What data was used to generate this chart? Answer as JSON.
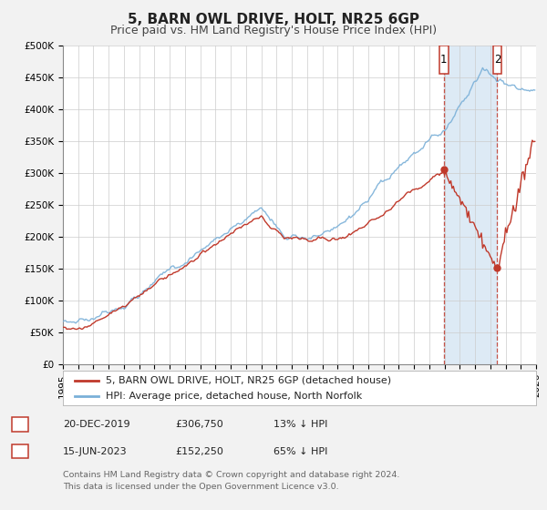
{
  "title": "5, BARN OWL DRIVE, HOLT, NR25 6GP",
  "subtitle": "Price paid vs. HM Land Registry's House Price Index (HPI)",
  "ylim": [
    0,
    500000
  ],
  "xlim": [
    1995,
    2026
  ],
  "yticks": [
    0,
    50000,
    100000,
    150000,
    200000,
    250000,
    300000,
    350000,
    400000,
    450000,
    500000
  ],
  "ytick_labels": [
    "£0",
    "£50K",
    "£100K",
    "£150K",
    "£200K",
    "£250K",
    "£300K",
    "£350K",
    "£400K",
    "£450K",
    "£500K"
  ],
  "legend1_label": "5, BARN OWL DRIVE, HOLT, NR25 6GP (detached house)",
  "legend2_label": "HPI: Average price, detached house, North Norfolk",
  "sale1_x": 2019.958,
  "sale1_y": 306750,
  "sale2_x": 2023.458,
  "sale2_y": 152250,
  "sale1_date": "20-DEC-2019",
  "sale1_price": "£306,750",
  "sale1_pct": "13% ↓ HPI",
  "sale2_date": "15-JUN-2023",
  "sale2_price": "£152,250",
  "sale2_pct": "65% ↓ HPI",
  "footnote1": "Contains HM Land Registry data © Crown copyright and database right 2024.",
  "footnote2": "This data is licensed under the Open Government Licence v3.0.",
  "hpi_color": "#7ab0d8",
  "price_color": "#c0392b",
  "shaded_color": "#ddeaf5",
  "bg_color": "#f2f2f2",
  "plot_bg": "#ffffff",
  "grid_color": "#cccccc",
  "title_fs": 11,
  "subtitle_fs": 9,
  "tick_fs": 7.5,
  "legend_fs": 8,
  "table_fs": 8
}
